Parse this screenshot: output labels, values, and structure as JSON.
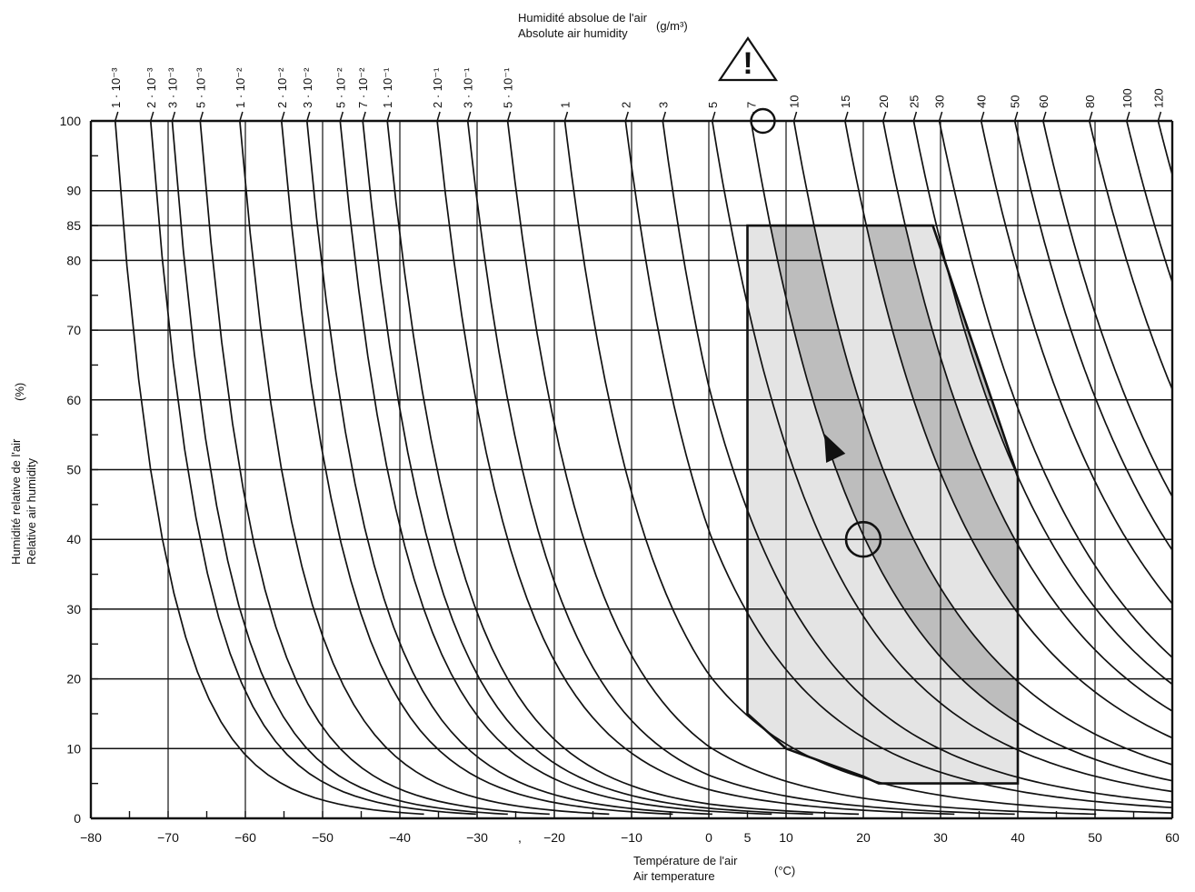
{
  "chart_data": {
    "type": "line",
    "x": {
      "label_fr": "Température de l'air",
      "label_en": "Air temperature",
      "unit": "(°C)",
      "range": [
        -80,
        60
      ],
      "ticks": [
        -80,
        -70,
        -60,
        -50,
        -40,
        -30,
        -20,
        -10,
        0,
        5,
        10,
        20,
        30,
        40,
        50,
        60
      ],
      "tick_labels": [
        "−80",
        "−70",
        "−60",
        "−50",
        "−40",
        "−30",
        "−20",
        "−10",
        "0",
        "5",
        "10",
        "20",
        "30",
        "40",
        "50",
        "60"
      ],
      "stray_mark": ","
    },
    "y": {
      "label_fr": "Humidité relative de l'air",
      "label_en": "Relative air humidity",
      "unit": "(%)",
      "range": [
        0,
        100
      ],
      "ticks": [
        0,
        10,
        20,
        30,
        40,
        50,
        60,
        70,
        80,
        85,
        90,
        100
      ],
      "tick_labels": [
        "0",
        "10",
        "20",
        "30",
        "40",
        "50",
        "60",
        "70",
        "80",
        "85",
        "90",
        "100"
      ]
    },
    "top_axis": {
      "label_fr": "Humidité absolue de l'air",
      "label_en": "Absolute air humidity",
      "unit": "(g/m³)",
      "curves": [
        {
          "label": "1 · 10⁻³",
          "value": 0.001
        },
        {
          "label": "2 · 10⁻³",
          "value": 0.002
        },
        {
          "label": "3 · 10⁻³",
          "value": 0.003
        },
        {
          "label": "5 · 10⁻³",
          "value": 0.005
        },
        {
          "label": "1 · 10⁻²",
          "value": 0.01
        },
        {
          "label": "2 · 10⁻²",
          "value": 0.02
        },
        {
          "label": "3 · 10⁻²",
          "value": 0.03
        },
        {
          "label": "5 · 10⁻²",
          "value": 0.05
        },
        {
          "label": "7 · 10⁻²",
          "value": 0.07
        },
        {
          "label": "1 · 10⁻¹",
          "value": 0.1
        },
        {
          "label": "2 · 10⁻¹",
          "value": 0.2
        },
        {
          "label": "3 · 10⁻¹",
          "value": 0.3
        },
        {
          "label": "5 · 10⁻¹",
          "value": 0.5
        },
        {
          "label": "1",
          "value": 1
        },
        {
          "label": "2",
          "value": 2
        },
        {
          "label": "3",
          "value": 3
        },
        {
          "label": "5",
          "value": 5
        },
        {
          "label": "7",
          "value": 7
        },
        {
          "label": "10",
          "value": 10
        },
        {
          "label": "15",
          "value": 15
        },
        {
          "label": "20",
          "value": 20
        },
        {
          "label": "25",
          "value": 25
        },
        {
          "label": "30",
          "value": 30
        },
        {
          "label": "40",
          "value": 40
        },
        {
          "label": "50",
          "value": 50
        },
        {
          "label": "60",
          "value": 60
        },
        {
          "label": "80",
          "value": 80
        },
        {
          "label": "100",
          "value": 100
        },
        {
          "label": "120",
          "value": 120
        }
      ]
    },
    "climatogram_region": {
      "outline": [
        [
          5,
          85
        ],
        [
          29,
          85
        ],
        [
          40,
          49
        ],
        [
          40,
          5
        ],
        [
          35,
          5
        ],
        [
          22,
          5
        ],
        [
          20,
          6
        ],
        [
          10,
          10
        ],
        [
          5,
          15
        ]
      ],
      "fill_light": "#e4e4e4",
      "fill_dark": "#bdbdbd",
      "dark_bands_between_g_m3": [
        [
          7,
          10
        ],
        [
          15,
          20
        ],
        [
          25,
          30
        ]
      ]
    },
    "markers": {
      "circle_top": {
        "x": 7,
        "y": 100
      },
      "circle_center": {
        "x": 20,
        "y": 40
      },
      "arrow_from": [
        18,
        48
      ],
      "arrow_tip": [
        15,
        55
      ]
    },
    "warning_symbol": {
      "text": "!"
    },
    "grid": true,
    "colors": {
      "ink": "#111111",
      "light_fill": "#e4e4e4",
      "dark_fill": "#bdbdbd"
    }
  }
}
